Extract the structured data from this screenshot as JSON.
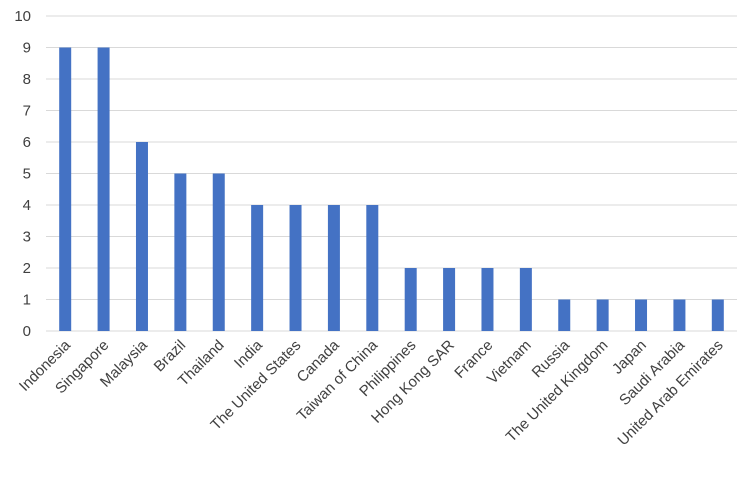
{
  "chart_data": {
    "type": "bar",
    "categories": [
      "Indonesia",
      "Singapore",
      "Malaysia",
      "Brazil",
      "Thailand",
      "India",
      "The United States",
      "Canada",
      "Taiwan of China",
      "Philippines",
      "Hong Kong SAR",
      "France",
      "Vietnam",
      "Russia",
      "The United Kingdom",
      "Japan",
      "Saudi Arabia",
      "United Arab Emirates"
    ],
    "values": [
      9,
      9,
      6,
      5,
      5,
      4,
      4,
      4,
      4,
      2,
      2,
      2,
      2,
      1,
      1,
      1,
      1,
      1
    ],
    "ylim": [
      0,
      10
    ],
    "yticks": [
      "0",
      "1",
      "2",
      "3",
      "4",
      "5",
      "6",
      "7",
      "8",
      "9",
      "10"
    ],
    "grid": true,
    "legend": "none",
    "bar_color": "#4472C4",
    "grid_color": "#D9D9D9",
    "title": "",
    "xlabel": "",
    "ylabel": ""
  }
}
